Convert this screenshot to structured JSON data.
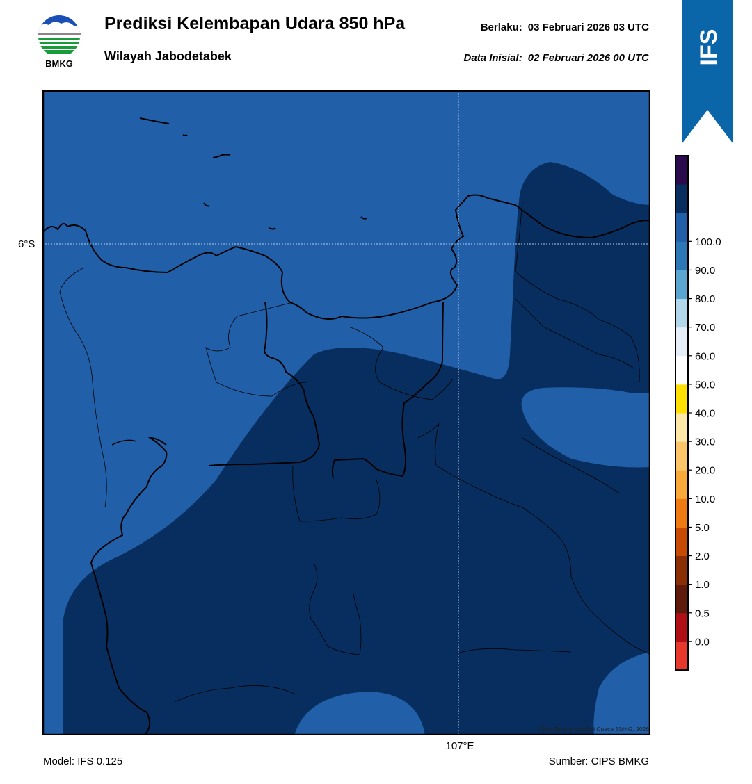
{
  "header": {
    "title": "Prediksi Kelembapan Udara 850 hPa",
    "subtitle": "Wilayah Jabodetabek",
    "valid_label": "Berlaku:",
    "valid_value": "03 Februari 2026 03 UTC",
    "init_label": "Data Inisial:",
    "init_value": "02 Februari 2026 00 UTC"
  },
  "logo": {
    "text": "BMKG",
    "icon": "bmkg-logo"
  },
  "banner": {
    "text": "IFS",
    "color": "#0a66a8"
  },
  "map": {
    "lat_label": "6°S",
    "lon_label": "107°E",
    "copyright": "©Sub Bidang Prediksi Cuaca BMKG, 2026",
    "fill_colors": {
      "80-90": "#2160a8",
      "90-100": "#072e5e"
    }
  },
  "footer": {
    "model": "Model: IFS 0.125",
    "source": "Sumber: CIPS BMKG"
  },
  "colorbar": {
    "colors_bottom_to_top": [
      "#e8382c",
      "#b01015",
      "#5e1a0a",
      "#8a2e06",
      "#c84b04",
      "#f07a12",
      "#f9a93a",
      "#fcc56a",
      "#fde8a8",
      "#ffe000",
      "#ffffff",
      "#e6eef8",
      "#b0d8ea",
      "#5ba6d0",
      "#2c77b6",
      "#2160a8",
      "#072e5e",
      "#2a0c4e"
    ],
    "labels": [
      "0.0",
      "0.5",
      "1.0",
      "2.0",
      "5.0",
      "10.0",
      "20.0",
      "30.0",
      "40.0",
      "50.0",
      "60.0",
      "70.0",
      "80.0",
      "90.0",
      "100.0"
    ]
  }
}
